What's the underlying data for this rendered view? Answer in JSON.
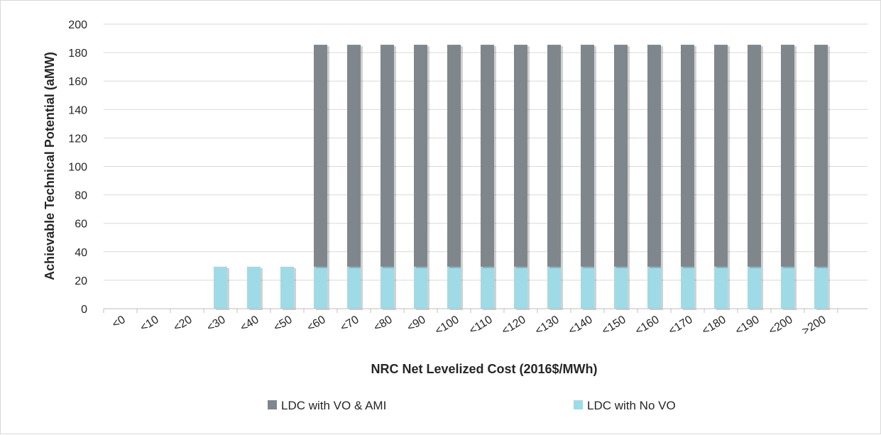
{
  "chart_data": {
    "type": "bar",
    "stacked": true,
    "title": "",
    "xlabel": "NRC Net Levelized Cost (2016$/MWh)",
    "ylabel": "Achievable Technical Potential (aMW)",
    "ylim": [
      0,
      200
    ],
    "yticks": [
      0,
      20,
      40,
      60,
      80,
      100,
      120,
      140,
      160,
      180,
      200
    ],
    "grid": true,
    "legend_position": "bottom",
    "categories": [
      "<0",
      "<10",
      "<20",
      "<30",
      "<40",
      "<50",
      "<60",
      "<70",
      "<80",
      "<90",
      "<100",
      "<110",
      "<120",
      "<130",
      "<140",
      "<150",
      "<160",
      "<170",
      "<180",
      "<190",
      "<200",
      ">200"
    ],
    "series": [
      {
        "name": "LDC with No VO",
        "color": "#9edbe7",
        "values": [
          0,
          0,
          0,
          29.5,
          29.5,
          29.5,
          29.5,
          29.5,
          29.5,
          29.5,
          29.5,
          29.5,
          29.5,
          29.5,
          29.5,
          29.5,
          29.5,
          29.5,
          29.5,
          29.5,
          29.5,
          29.5
        ]
      },
      {
        "name": "LDC with VO & AMI",
        "color": "#7f878c",
        "values": [
          0,
          0,
          0,
          0,
          0,
          0,
          156,
          156,
          156,
          156,
          156,
          156,
          156,
          156,
          156,
          156,
          156,
          156,
          156,
          156,
          156,
          156
        ]
      }
    ],
    "legend_order": [
      "LDC with VO & AMI",
      "LDC with No VO"
    ]
  }
}
